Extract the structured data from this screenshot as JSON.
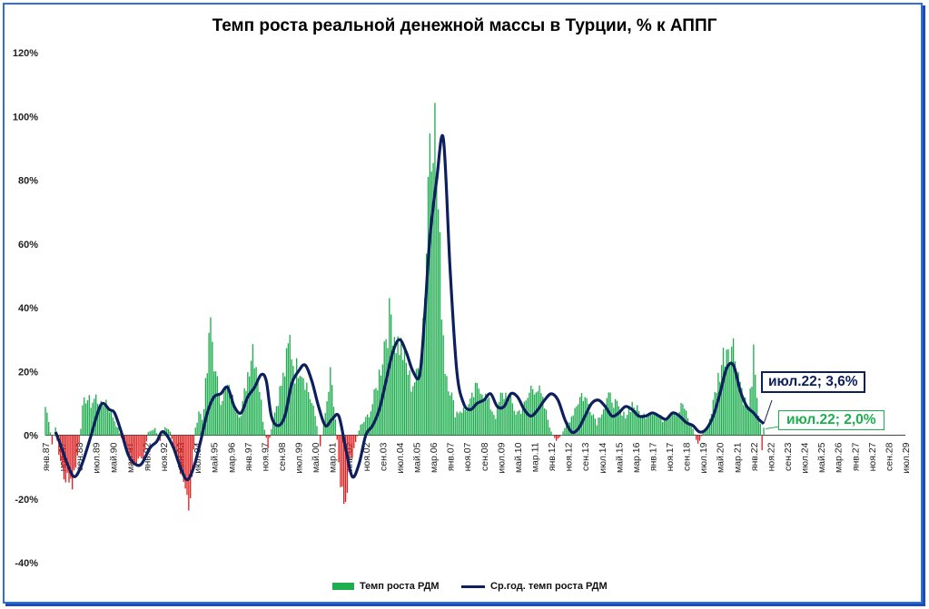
{
  "title": "Темп роста реальной денежной массы в Турции, % к АППГ",
  "chart_data": {
    "type": "bar",
    "y_ticks": [
      "120%",
      "100%",
      "80%",
      "60%",
      "40%",
      "20%",
      "0%",
      "-20%",
      "-40%"
    ],
    "ylim": [
      -40,
      120
    ],
    "x_ticks": [
      "янв.87",
      "ноя.87",
      "сен.88",
      "июл.89",
      "май.90",
      "мар.91",
      "янв.92",
      "ноя.92",
      "сен.93",
      "июл.94",
      "май.95",
      "мар.96",
      "янв.97",
      "ноя.97",
      "сен.98",
      "июл.99",
      "май.00",
      "мар.01",
      "янв.02",
      "ноя.02",
      "сен.03",
      "июл.04",
      "май.05",
      "мар.06",
      "янв.07",
      "ноя.07",
      "сен.08",
      "июл.09",
      "май.10",
      "мар.11",
      "янв.12",
      "ноя.12",
      "сен.13",
      "июл.14",
      "май.15",
      "мар.16",
      "янв.17",
      "ноя.17",
      "сен.18",
      "июл.19",
      "май.20",
      "мар.21",
      "янв.22",
      "ноя.22",
      "сен.23",
      "июл.24",
      "май.25",
      "мар.26",
      "янв.27",
      "ноя.27",
      "сен.28",
      "июл.29"
    ],
    "x_range": [
      "1987-01",
      "2029-07"
    ],
    "series": [
      {
        "name": "Темп роста РДМ",
        "color": "#1fae4f",
        "negative_color": "#e02020",
        "anchors": [
          [
            "1987-01",
            9
          ],
          [
            "1987-03",
            5
          ],
          [
            "1987-05",
            -3
          ],
          [
            "1987-07",
            3
          ],
          [
            "1987-09",
            -6
          ],
          [
            "1987-11",
            -11
          ],
          [
            "1988-01",
            -14
          ],
          [
            "1988-03",
            -15
          ],
          [
            "1988-05",
            -16
          ],
          [
            "1988-07",
            -10
          ],
          [
            "1988-09",
            -3
          ],
          [
            "1988-11",
            8
          ],
          [
            "1989-01",
            12
          ],
          [
            "1989-04",
            10
          ],
          [
            "1989-07",
            12
          ],
          [
            "1989-10",
            9
          ],
          [
            "1990-01",
            11
          ],
          [
            "1990-05",
            6
          ],
          [
            "1990-08",
            2
          ],
          [
            "1990-11",
            -2
          ],
          [
            "1991-02",
            -6
          ],
          [
            "1991-05",
            -10
          ],
          [
            "1991-08",
            -9
          ],
          [
            "1991-11",
            -7
          ],
          [
            "1992-02",
            1
          ],
          [
            "1992-06",
            2
          ],
          [
            "1992-09",
            -2
          ],
          [
            "1992-12",
            3
          ],
          [
            "1993-03",
            1
          ],
          [
            "1993-06",
            -5
          ],
          [
            "1993-09",
            -12
          ],
          [
            "1993-12",
            -18
          ],
          [
            "1994-02",
            -25
          ],
          [
            "1994-04",
            -12
          ],
          [
            "1994-06",
            2
          ],
          [
            "1994-08",
            8
          ],
          [
            "1994-10",
            5
          ],
          [
            "1995-01",
            20
          ],
          [
            "1995-03",
            36
          ],
          [
            "1995-06",
            18
          ],
          [
            "1995-09",
            12
          ],
          [
            "1996-01",
            15
          ],
          [
            "1996-05",
            10
          ],
          [
            "1996-09",
            6
          ],
          [
            "1997-01",
            20
          ],
          [
            "1997-04",
            29
          ],
          [
            "1997-07",
            20
          ],
          [
            "1997-10",
            5
          ],
          [
            "1998-01",
            -4
          ],
          [
            "1998-04",
            5
          ],
          [
            "1998-08",
            14
          ],
          [
            "1998-11",
            20
          ],
          [
            "1999-02",
            30
          ],
          [
            "1999-05",
            20
          ],
          [
            "1999-08",
            23
          ],
          [
            "1999-11",
            18
          ],
          [
            "2000-02",
            12
          ],
          [
            "2000-05",
            6
          ],
          [
            "2000-08",
            -3
          ],
          [
            "2000-11",
            6
          ],
          [
            "2001-02",
            18
          ],
          [
            "2001-05",
            5
          ],
          [
            "2001-08",
            -14
          ],
          [
            "2001-11",
            -20
          ],
          [
            "2002-02",
            -8
          ],
          [
            "2002-05",
            -2
          ],
          [
            "2002-08",
            3
          ],
          [
            "2002-11",
            5
          ],
          [
            "2003-02",
            8
          ],
          [
            "2003-05",
            14
          ],
          [
            "2003-08",
            22
          ],
          [
            "2003-11",
            33
          ],
          [
            "2004-02",
            38
          ],
          [
            "2004-05",
            30
          ],
          [
            "2004-08",
            28
          ],
          [
            "2004-11",
            22
          ],
          [
            "2005-02",
            16
          ],
          [
            "2005-05",
            18
          ],
          [
            "2005-08",
            26
          ],
          [
            "2005-11",
            60
          ],
          [
            "2006-01",
            103
          ],
          [
            "2006-03",
            106
          ],
          [
            "2006-05",
            85
          ],
          [
            "2006-07",
            55
          ],
          [
            "2006-10",
            22
          ],
          [
            "2007-01",
            15
          ],
          [
            "2007-04",
            7
          ],
          [
            "2007-07",
            8
          ],
          [
            "2007-10",
            8
          ],
          [
            "2008-01",
            10
          ],
          [
            "2008-04",
            14
          ],
          [
            "2008-07",
            16
          ],
          [
            "2008-10",
            12
          ],
          [
            "2009-01",
            9
          ],
          [
            "2009-04",
            6
          ],
          [
            "2009-07",
            12
          ],
          [
            "2009-10",
            13
          ],
          [
            "2010-01",
            11
          ],
          [
            "2010-04",
            7
          ],
          [
            "2010-07",
            8
          ],
          [
            "2010-10",
            10
          ],
          [
            "2011-01",
            15
          ],
          [
            "2011-04",
            16
          ],
          [
            "2011-07",
            12
          ],
          [
            "2011-10",
            7
          ],
          [
            "2012-01",
            1
          ],
          [
            "2012-04",
            -2
          ],
          [
            "2012-07",
            0
          ],
          [
            "2012-10",
            3
          ],
          [
            "2013-01",
            6
          ],
          [
            "2013-04",
            10
          ],
          [
            "2013-07",
            13
          ],
          [
            "2013-10",
            11
          ],
          [
            "2014-01",
            8
          ],
          [
            "2014-04",
            4
          ],
          [
            "2014-07",
            8
          ],
          [
            "2014-10",
            11
          ],
          [
            "2015-01",
            12
          ],
          [
            "2015-04",
            9
          ],
          [
            "2015-07",
            6
          ],
          [
            "2015-10",
            7
          ],
          [
            "2016-01",
            10
          ],
          [
            "2016-04",
            8
          ],
          [
            "2016-07",
            6
          ],
          [
            "2016-10",
            7
          ],
          [
            "2017-01",
            8
          ],
          [
            "2017-04",
            6
          ],
          [
            "2017-07",
            5
          ],
          [
            "2017-10",
            7
          ],
          [
            "2018-01",
            8
          ],
          [
            "2018-04",
            7
          ],
          [
            "2018-07",
            10
          ],
          [
            "2018-10",
            5
          ],
          [
            "2019-01",
            2
          ],
          [
            "2019-04",
            -3
          ],
          [
            "2019-07",
            1
          ],
          [
            "2019-10",
            3
          ],
          [
            "2020-01",
            10
          ],
          [
            "2020-04",
            18
          ],
          [
            "2020-07",
            25
          ],
          [
            "2020-10",
            30
          ],
          [
            "2021-01",
            28
          ],
          [
            "2021-04",
            20
          ],
          [
            "2021-07",
            12
          ],
          [
            "2021-10",
            8
          ],
          [
            "2022-01",
            24
          ],
          [
            "2022-03",
            10
          ],
          [
            "2022-05",
            4
          ],
          [
            "2022-06",
            -5
          ],
          [
            "2022-07",
            2
          ]
        ]
      },
      {
        "name": "Ср.год. темп роста РДМ",
        "color": "#0d1f5c",
        "points": [
          [
            "1987-07",
            1
          ],
          [
            "1987-10",
            -3
          ],
          [
            "1988-02",
            -9
          ],
          [
            "1988-06",
            -13
          ],
          [
            "1988-10",
            -10
          ],
          [
            "1989-03",
            -2
          ],
          [
            "1989-08",
            7
          ],
          [
            "1989-11",
            10
          ],
          [
            "1990-03",
            8
          ],
          [
            "1990-06",
            7
          ],
          [
            "1990-10",
            1
          ],
          [
            "1991-02",
            -6
          ],
          [
            "1991-06",
            -9
          ],
          [
            "1991-10",
            -9
          ],
          [
            "1992-03",
            -4
          ],
          [
            "1992-07",
            -2
          ],
          [
            "1992-10",
            1
          ],
          [
            "1993-01",
            0
          ],
          [
            "1993-05",
            -4
          ],
          [
            "1993-09",
            -10
          ],
          [
            "1994-01",
            -14
          ],
          [
            "1994-05",
            -10
          ],
          [
            "1994-09",
            -2
          ],
          [
            "1995-01",
            7
          ],
          [
            "1995-05",
            12
          ],
          [
            "1995-09",
            13
          ],
          [
            "1996-01",
            15
          ],
          [
            "1996-05",
            9
          ],
          [
            "1996-09",
            7
          ],
          [
            "1997-01",
            12
          ],
          [
            "1997-05",
            15
          ],
          [
            "1997-09",
            19
          ],
          [
            "1997-12",
            17
          ],
          [
            "1998-03",
            6
          ],
          [
            "1998-07",
            3
          ],
          [
            "1998-11",
            6
          ],
          [
            "1999-03",
            16
          ],
          [
            "1999-07",
            20
          ],
          [
            "1999-11",
            22
          ],
          [
            "2000-03",
            17
          ],
          [
            "2000-07",
            9
          ],
          [
            "2000-11",
            3
          ],
          [
            "2001-03",
            5
          ],
          [
            "2001-07",
            6
          ],
          [
            "2001-11",
            -4
          ],
          [
            "2002-03",
            -13
          ],
          [
            "2002-07",
            -9
          ],
          [
            "2002-11",
            0
          ],
          [
            "2003-03",
            3
          ],
          [
            "2003-07",
            8
          ],
          [
            "2003-11",
            17
          ],
          [
            "2004-03",
            26
          ],
          [
            "2004-07",
            30
          ],
          [
            "2004-11",
            26
          ],
          [
            "2005-03",
            20
          ],
          [
            "2005-07",
            19
          ],
          [
            "2005-10",
            38
          ],
          [
            "2006-01",
            62
          ],
          [
            "2006-05",
            80
          ],
          [
            "2006-09",
            93
          ],
          [
            "2007-01",
            52
          ],
          [
            "2007-05",
            20
          ],
          [
            "2007-09",
            10
          ],
          [
            "2008-01",
            8
          ],
          [
            "2008-05",
            10
          ],
          [
            "2008-09",
            11
          ],
          [
            "2009-01",
            13
          ],
          [
            "2009-05",
            9
          ],
          [
            "2009-09",
            9
          ],
          [
            "2010-01",
            13
          ],
          [
            "2010-05",
            12
          ],
          [
            "2010-09",
            8
          ],
          [
            "2011-01",
            6
          ],
          [
            "2011-05",
            8
          ],
          [
            "2011-09",
            11
          ],
          [
            "2012-01",
            13
          ],
          [
            "2012-05",
            11
          ],
          [
            "2012-09",
            5
          ],
          [
            "2013-01",
            1
          ],
          [
            "2013-05",
            2
          ],
          [
            "2013-09",
            6
          ],
          [
            "2014-01",
            10
          ],
          [
            "2014-05",
            11
          ],
          [
            "2014-09",
            9
          ],
          [
            "2015-01",
            6
          ],
          [
            "2015-05",
            7
          ],
          [
            "2015-09",
            9
          ],
          [
            "2016-01",
            8
          ],
          [
            "2016-05",
            6
          ],
          [
            "2016-09",
            6
          ],
          [
            "2017-01",
            7
          ],
          [
            "2017-05",
            6
          ],
          [
            "2017-09",
            5
          ],
          [
            "2018-01",
            7
          ],
          [
            "2018-05",
            6
          ],
          [
            "2018-09",
            4
          ],
          [
            "2019-01",
            3
          ],
          [
            "2019-05",
            1
          ],
          [
            "2019-09",
            2
          ],
          [
            "2020-01",
            6
          ],
          [
            "2020-05",
            13
          ],
          [
            "2020-09",
            21
          ],
          [
            "2021-01",
            22
          ],
          [
            "2021-05",
            14
          ],
          [
            "2021-09",
            9
          ],
          [
            "2022-01",
            7
          ],
          [
            "2022-04",
            5
          ],
          [
            "2022-07",
            3.6
          ]
        ]
      }
    ],
    "annotations": [
      {
        "text": "июл.22; 3,6%",
        "series": "Ср.год. темп роста РДМ",
        "color": "#0d1f5c"
      },
      {
        "text": "июл.22; 2,0%",
        "series": "Темп роста РДМ",
        "color": "#1fae4f"
      }
    ],
    "legend_position": "bottom",
    "grid": false
  }
}
